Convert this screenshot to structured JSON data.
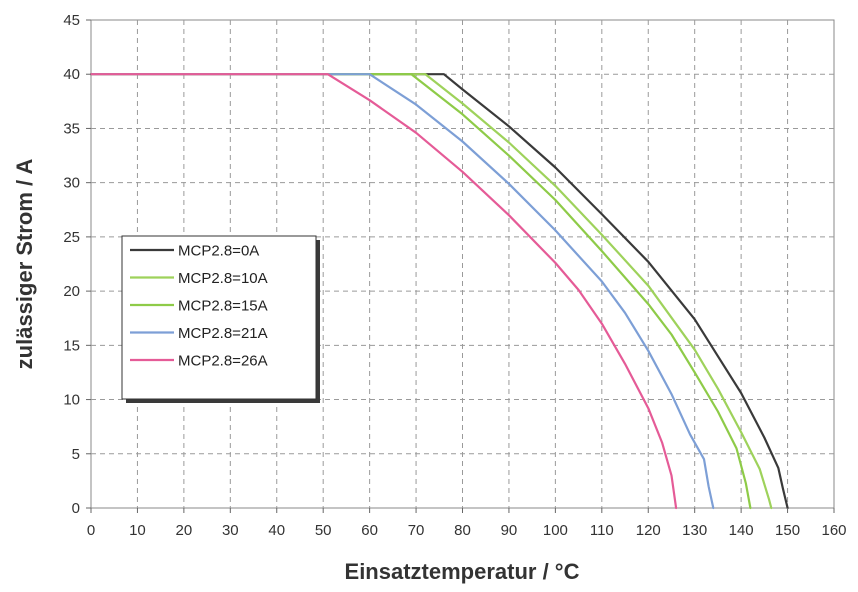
{
  "chart_data": {
    "type": "line",
    "title": "",
    "xlabel": "Einsatztemperatur / °C",
    "ylabel": "zulässiger Strom / A",
    "xlim": [
      0,
      160
    ],
    "ylim": [
      0,
      45
    ],
    "xticks": [
      0,
      10,
      20,
      30,
      40,
      50,
      60,
      70,
      80,
      90,
      100,
      110,
      120,
      130,
      140,
      150,
      160
    ],
    "yticks": [
      0,
      5,
      10,
      15,
      20,
      25,
      30,
      35,
      40,
      45
    ],
    "grid": true,
    "legend_position": "left-middle",
    "series": [
      {
        "name": "MCP2.8=0A",
        "color": "#3a3a3a",
        "points": [
          [
            0,
            40
          ],
          [
            76,
            40
          ],
          [
            80,
            38.6
          ],
          [
            90,
            35.2
          ],
          [
            100,
            31.4
          ],
          [
            110,
            27.1
          ],
          [
            120,
            22.7
          ],
          [
            130,
            17.4
          ],
          [
            135,
            14.0
          ],
          [
            140,
            10.6
          ],
          [
            145,
            6.5
          ],
          [
            148,
            3.7
          ],
          [
            149,
            1.8
          ],
          [
            150,
            0
          ]
        ]
      },
      {
        "name": "MCP2.8=10A",
        "color": "#9ed25b",
        "points": [
          [
            0,
            40
          ],
          [
            72,
            40
          ],
          [
            80,
            37.3
          ],
          [
            90,
            33.7
          ],
          [
            100,
            29.7
          ],
          [
            110,
            25.2
          ],
          [
            120,
            20.5
          ],
          [
            130,
            14.6
          ],
          [
            135,
            11.0
          ],
          [
            140,
            7.0
          ],
          [
            144,
            3.6
          ],
          [
            146,
            0.8
          ],
          [
            146.5,
            0
          ]
        ]
      },
      {
        "name": "MCP2.8=15A",
        "color": "#8ecb48",
        "points": [
          [
            0,
            40
          ],
          [
            69,
            40
          ],
          [
            80,
            36.3
          ],
          [
            90,
            32.5
          ],
          [
            100,
            28.4
          ],
          [
            110,
            23.7
          ],
          [
            120,
            18.8
          ],
          [
            125,
            16.0
          ],
          [
            130,
            12.5
          ],
          [
            135,
            8.9
          ],
          [
            139,
            5.5
          ],
          [
            141,
            2.3
          ],
          [
            142,
            0
          ]
        ]
      },
      {
        "name": "MCP2.8=21A",
        "color": "#7d9fd6",
        "points": [
          [
            0,
            40
          ],
          [
            60,
            40
          ],
          [
            70,
            37.2
          ],
          [
            80,
            33.8
          ],
          [
            90,
            29.9
          ],
          [
            100,
            25.6
          ],
          [
            110,
            20.9
          ],
          [
            115,
            18.0
          ],
          [
            120,
            14.5
          ],
          [
            125,
            10.5
          ],
          [
            129,
            6.8
          ],
          [
            132,
            4.5
          ],
          [
            133,
            2.0
          ],
          [
            134,
            0
          ]
        ]
      },
      {
        "name": "MCP2.8=26A",
        "color": "#e55b97",
        "points": [
          [
            0,
            40
          ],
          [
            51,
            40
          ],
          [
            60,
            37.6
          ],
          [
            70,
            34.6
          ],
          [
            80,
            31.0
          ],
          [
            90,
            27.0
          ],
          [
            100,
            22.6
          ],
          [
            105,
            20.1
          ],
          [
            110,
            17.0
          ],
          [
            115,
            13.3
          ],
          [
            120,
            9.2
          ],
          [
            123,
            6.0
          ],
          [
            125,
            3.0
          ],
          [
            126,
            0
          ]
        ]
      }
    ]
  }
}
